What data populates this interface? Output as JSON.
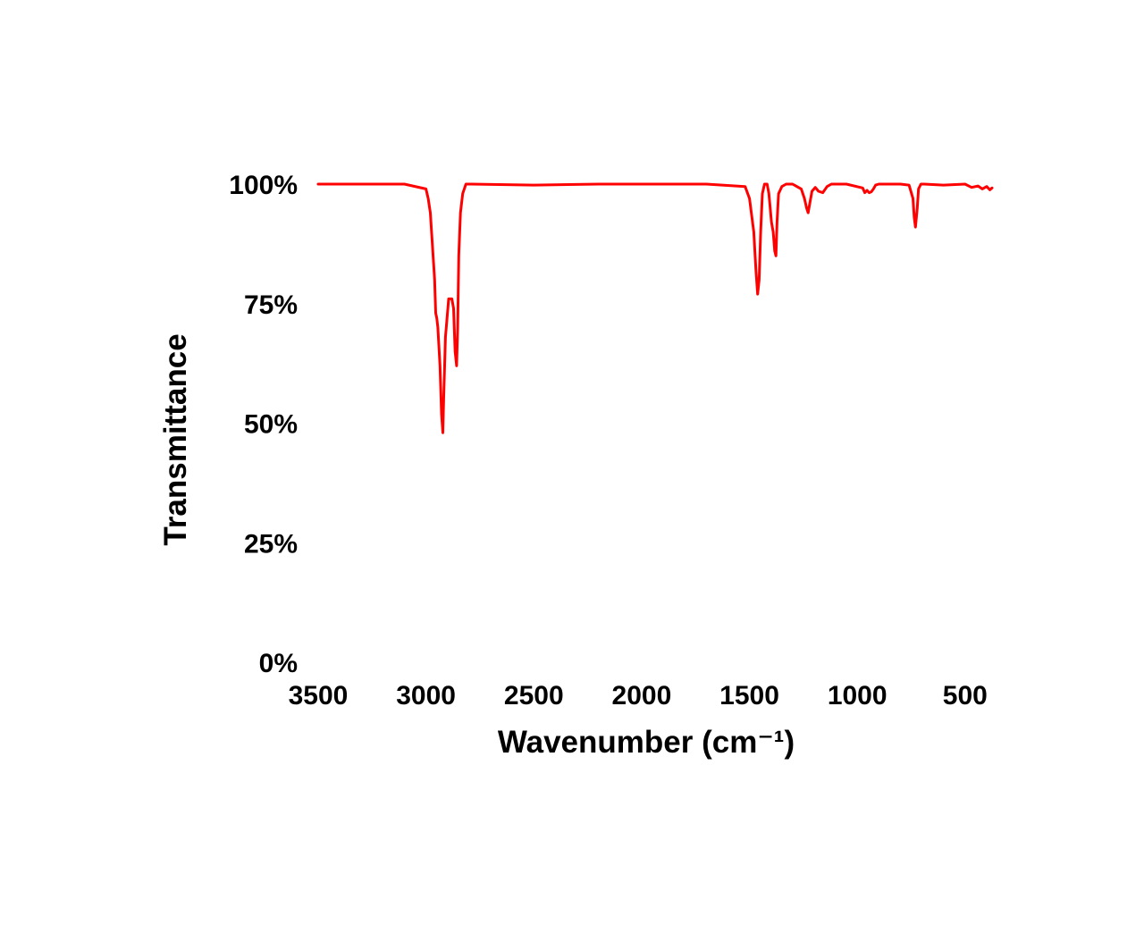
{
  "chart_data": {
    "type": "line",
    "title": "",
    "xlabel": "Wavenumber (cm⁻¹)",
    "ylabel": "Transmittance",
    "xlim": [
      3500,
      375
    ],
    "x_reversed": true,
    "ylim": [
      0,
      100
    ],
    "grid": false,
    "legend": "none",
    "x_ticks": [
      3500,
      3000,
      2500,
      2000,
      1500,
      1000,
      500
    ],
    "x_tick_labels": [
      "3500",
      "3000",
      "2500",
      "2000",
      "1500",
      "1000",
      "500"
    ],
    "y_ticks": [
      100,
      75,
      50,
      25,
      0
    ],
    "y_tick_labels": [
      "100%",
      "75%",
      "50%",
      "25%",
      "0%"
    ],
    "series": [
      {
        "color": "#ff0000",
        "x": [
          3500,
          3100,
          3000,
          2990,
          2980,
          2970,
          2960,
          2955,
          2950,
          2945,
          2935,
          2928,
          2922,
          2918,
          2910,
          2895,
          2880,
          2872,
          2865,
          2858,
          2853,
          2848,
          2840,
          2830,
          2815,
          2800,
          2790,
          2500,
          2200,
          1700,
          1520,
          1500,
          1480,
          1470,
          1462,
          1455,
          1448,
          1440,
          1430,
          1418,
          1410,
          1398,
          1390,
          1383,
          1377,
          1372,
          1365,
          1350,
          1330,
          1300,
          1260,
          1245,
          1235,
          1228,
          1220,
          1210,
          1195,
          1180,
          1160,
          1140,
          1120,
          1100,
          1050,
          975,
          965,
          955,
          945,
          935,
          925,
          915,
          900,
          880,
          800,
          760,
          742,
          736,
          730,
          722,
          716,
          705,
          690,
          600,
          500,
          470,
          440,
          420,
          400,
          385,
          375
        ],
        "y": [
          100,
          100,
          99,
          97,
          94,
          87,
          80,
          73,
          72,
          70,
          62,
          52,
          48,
          55,
          68,
          76,
          76,
          74,
          65,
          62,
          70,
          85,
          94,
          98,
          100,
          100,
          100,
          99.8,
          100,
          100,
          99.5,
          97,
          90,
          82,
          77,
          80,
          90,
          98,
          100,
          100,
          98,
          92,
          90,
          86,
          85,
          92,
          98,
          99.5,
          100,
          100,
          99,
          97,
          95,
          94,
          96,
          98.5,
          99.3,
          98.5,
          98.2,
          99.5,
          100,
          100,
          100,
          99.2,
          98.2,
          98.7,
          98.2,
          98.4,
          99,
          99.8,
          100,
          100,
          100,
          99.8,
          97,
          93,
          91,
          95,
          99,
          100,
          100,
          99.8,
          100,
          99.3,
          99.6,
          99,
          99.5,
          98.8,
          99.2
        ]
      }
    ]
  }
}
